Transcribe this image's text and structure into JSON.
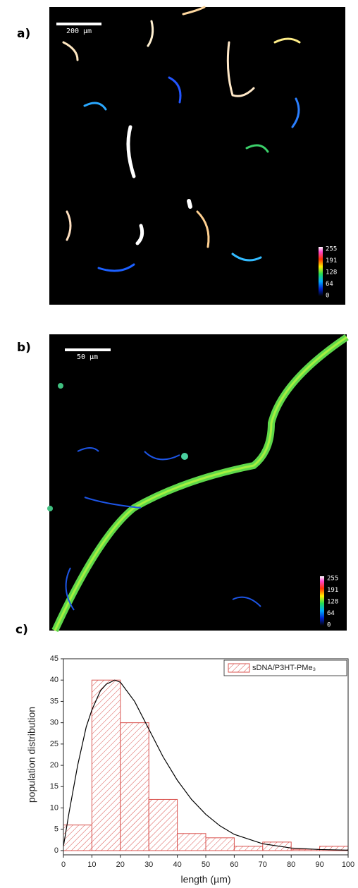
{
  "panels": [
    {
      "label": "a)",
      "scale_bar": "200 µm",
      "colorbar_ticks": [
        255,
        191,
        128,
        64,
        0
      ]
    },
    {
      "label": "b)",
      "scale_bar": "50 µm",
      "colorbar_ticks": [
        255,
        191,
        128,
        64,
        0
      ]
    }
  ],
  "chart_data": {
    "type": "histogram",
    "label": "c)",
    "xlabel": "length (µm)",
    "ylabel": "population distribution",
    "bins": [
      0,
      10,
      20,
      30,
      40,
      50,
      60,
      70,
      80,
      90,
      100
    ],
    "series": [
      {
        "name": "sDNA/P3HT-PMe₃",
        "color": "#d9534f",
        "values": [
          6,
          40,
          30,
          12,
          4,
          3,
          1,
          2,
          0.3,
          1
        ]
      }
    ],
    "fit_curve": {
      "color": "#000000",
      "x": [
        0,
        2,
        5,
        8,
        10,
        13,
        15,
        18,
        20,
        25,
        30,
        35,
        40,
        45,
        50,
        55,
        60,
        70,
        80,
        90,
        100
      ],
      "values": [
        1,
        9,
        20,
        29,
        33,
        37.5,
        39,
        40,
        39.5,
        35,
        28.5,
        22,
        16.5,
        12,
        8.5,
        5.8,
        3.8,
        1.6,
        0.6,
        0.25,
        0.1
      ]
    },
    "xlim": [
      0,
      100
    ],
    "xticks": [
      0,
      10,
      20,
      30,
      40,
      50,
      60,
      70,
      80,
      90,
      100
    ],
    "ylim": [
      -1,
      45
    ],
    "yticks": [
      0,
      5,
      10,
      15,
      20,
      25,
      30,
      35,
      40,
      45
    ],
    "legend": "upper right"
  }
}
